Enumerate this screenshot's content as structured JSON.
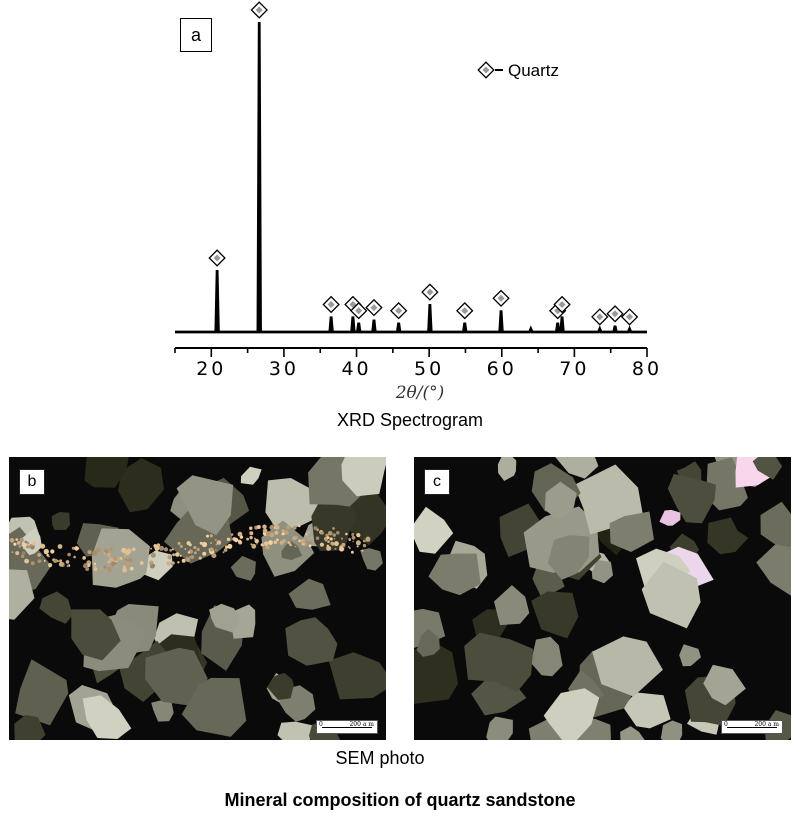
{
  "chart_data": {
    "type": "line",
    "panel_label": "a",
    "legend_label": "Quartz",
    "xlabel": "2θ/(°)",
    "caption": "XRD Spectrogram",
    "xlim": [
      15,
      80
    ],
    "ylim": [
      0,
      100
    ],
    "x_ticks": [
      20,
      30,
      40,
      50,
      60,
      70,
      80
    ],
    "peaks": [
      {
        "x": 20.8,
        "y": 20,
        "marker": "quartz"
      },
      {
        "x": 26.6,
        "y": 100,
        "marker": "quartz"
      },
      {
        "x": 36.5,
        "y": 5,
        "marker": "quartz"
      },
      {
        "x": 39.5,
        "y": 5,
        "marker": "quartz"
      },
      {
        "x": 40.3,
        "y": 3,
        "marker": "quartz"
      },
      {
        "x": 42.4,
        "y": 4,
        "marker": "quartz"
      },
      {
        "x": 45.8,
        "y": 3,
        "marker": "quartz"
      },
      {
        "x": 50.1,
        "y": 9,
        "marker": "quartz"
      },
      {
        "x": 54.9,
        "y": 3,
        "marker": "quartz"
      },
      {
        "x": 59.9,
        "y": 7,
        "marker": "quartz"
      },
      {
        "x": 64.0,
        "y": 1,
        "marker": "none"
      },
      {
        "x": 67.7,
        "y": 3,
        "marker": "quartz"
      },
      {
        "x": 68.3,
        "y": 5,
        "marker": "quartz"
      },
      {
        "x": 73.5,
        "y": 1,
        "marker": "quartz"
      },
      {
        "x": 75.6,
        "y": 2,
        "marker": "quartz"
      },
      {
        "x": 77.6,
        "y": 1,
        "marker": "quartz"
      }
    ]
  },
  "photos": {
    "b": {
      "label": "b",
      "scale_text": "200 a m",
      "zero": "0"
    },
    "c": {
      "label": "c",
      "scale_text": "200 a m",
      "zero": "0"
    },
    "caption": "SEM photo"
  },
  "figure_caption": "Mineral composition of quartz sandstone",
  "colors": {
    "ink": "#000000",
    "marker_fill": "#9a9a9a",
    "photo_bg": "#0a0a0a"
  }
}
